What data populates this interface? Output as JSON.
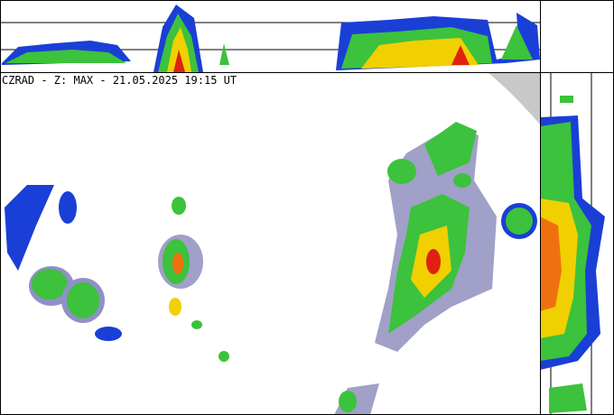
{
  "header": {
    "title": "CZRAD - Z: MAX - 21.05.2025 19:15 UT"
  }
}
